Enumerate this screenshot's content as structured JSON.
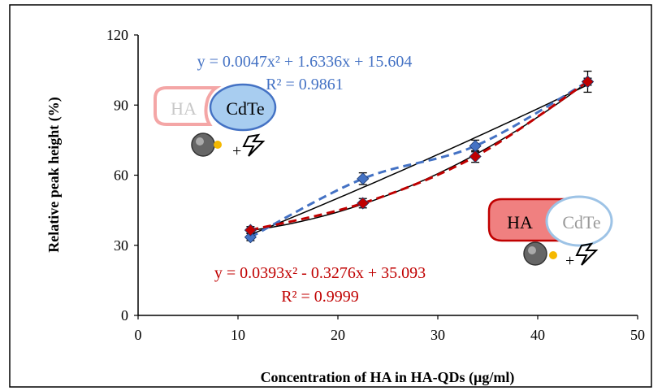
{
  "chart_data": {
    "type": "scatter",
    "xlabel": "Concentration of  HA in HA-QDs (µg/ml)",
    "ylabel": "Relative peak height (%)",
    "xlim": [
      0,
      50
    ],
    "ylim": [
      0,
      120
    ],
    "xticks": [
      "0",
      "10",
      "20",
      "30",
      "40",
      "50"
    ],
    "yticks": [
      "0",
      "30",
      "60",
      "90",
      "120"
    ],
    "grid": false,
    "series": [
      {
        "color": "#4472c4",
        "marker": "diamond",
        "x": [
          11.25,
          22.5,
          33.75,
          45
        ],
        "y": [
          33.5,
          58.5,
          72.5,
          100
        ],
        "err": [
          1.5,
          2.5,
          2.5,
          4.5
        ],
        "fit": {
          "a": 0.0047,
          "b": 1.6336,
          "c": 15.604
        },
        "equation": "y = 0.0047x² + 1.6336x + 15.604",
        "r2": "R² = 0.9861"
      },
      {
        "color": "#c00000",
        "marker": "diamond",
        "x": [
          11.25,
          22.5,
          33.75,
          45
        ],
        "y": [
          36.5,
          48,
          68,
          100
        ],
        "err": [
          1.5,
          2,
          2.5,
          1.5
        ],
        "fit": {
          "a": 0.0393,
          "b": -0.3276,
          "c": 35.093
        },
        "equation": "y = 0.0393x² - 0.3276x + 35.093",
        "r2": "R² = 0.9999"
      }
    ]
  },
  "illustrations": {
    "top_left": {
      "left_label": "HA",
      "right_label": "CdTe",
      "plus": "+"
    },
    "bottom_right": {
      "left_label": "HA",
      "right_label": "CdTe",
      "plus": "+"
    }
  },
  "colors": {
    "blue": "#4472c4",
    "red": "#c00000",
    "light_red": "#f4a6a6",
    "light_blue": "#9dc3e6",
    "fill_red": "#f08080",
    "fill_blue": "#a8cdf0"
  }
}
